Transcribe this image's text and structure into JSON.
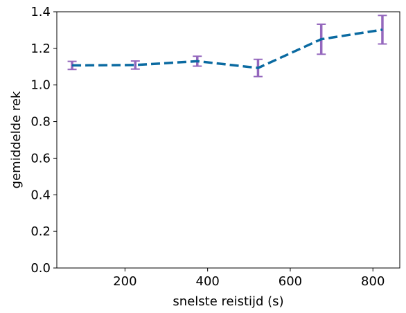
{
  "chart_data": {
    "type": "line",
    "title": "",
    "xlabel": "snelste reistijd (s)",
    "ylabel": "gemiddelde rek",
    "xlim": [
      35,
      865
    ],
    "ylim": [
      0.0,
      1.4
    ],
    "xticks": [
      200,
      400,
      600,
      800
    ],
    "yticks": [
      0.0,
      0.2,
      0.4,
      0.6,
      0.8,
      1.0,
      1.2,
      1.4
    ],
    "xtick_labels": [
      "200",
      "400",
      "600",
      "800"
    ],
    "ytick_labels": [
      "0.0",
      "0.2",
      "0.4",
      "0.6",
      "0.8",
      "1.0",
      "1.2",
      "1.4"
    ],
    "grid": false,
    "series": [
      {
        "x": [
          72,
          225,
          375,
          522,
          675,
          823
        ],
        "y": [
          1.107,
          1.109,
          1.13,
          1.093,
          1.25,
          1.302
        ],
        "yerr": [
          0.022,
          0.022,
          0.027,
          0.047,
          0.082,
          0.078
        ],
        "line_color": "#0a6aa1",
        "line_style": "dashed",
        "errorbar_color": "#9467bd"
      }
    ]
  }
}
